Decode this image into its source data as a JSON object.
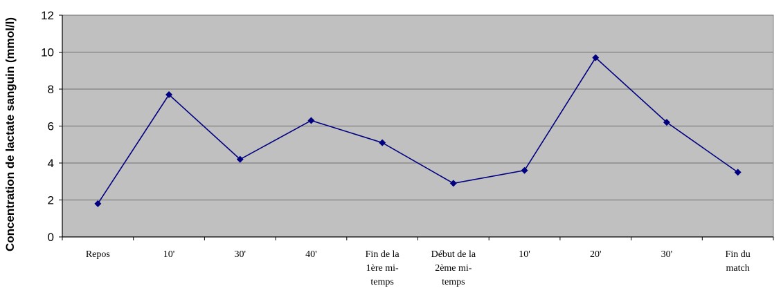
{
  "chart_data": {
    "type": "line",
    "ylabel": "Concentration de lactate sanguin (mmol/l)",
    "xlabel": "",
    "title": "",
    "ylim": [
      0,
      12
    ],
    "yticks": [
      0,
      2,
      4,
      6,
      8,
      10,
      12
    ],
    "grid": true,
    "legend": "none",
    "categories": [
      "Repos",
      "10'",
      "30'",
      "40'",
      "Fin de la 1ère mi-temps",
      "Début de la 2ème mi-temps",
      "10'",
      "20'",
      "30'",
      "Fin du match"
    ],
    "category_lines": [
      [
        "Repos"
      ],
      [
        "10'"
      ],
      [
        "30'"
      ],
      [
        "40'"
      ],
      [
        "Fin de la",
        "1ère mi-",
        "temps"
      ],
      [
        "Début de la",
        "2ème mi-",
        "temps"
      ],
      [
        "10'"
      ],
      [
        "20'"
      ],
      [
        "30'"
      ],
      [
        "Fin du",
        "match"
      ]
    ],
    "series": [
      {
        "values": [
          1.8,
          7.7,
          4.2,
          6.3,
          5.1,
          2.9,
          3.6,
          9.7,
          6.2,
          3.5
        ]
      }
    ],
    "colors": {
      "plot_background": "#c0c0c0",
      "gridline": "#808080",
      "line": "#000080",
      "marker": "#000080"
    }
  }
}
